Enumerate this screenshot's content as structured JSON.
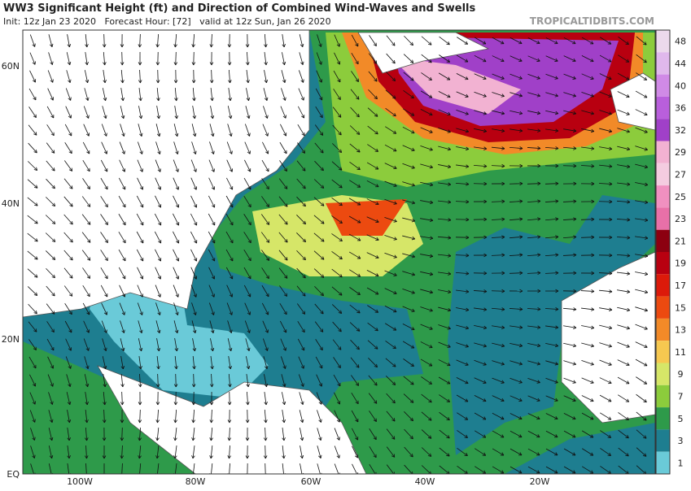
{
  "title": "WW3 Significant Height (ft) and Direction of Combined Wind-Waves and Swells",
  "subtitle": "Init: 12z Jan 23 2020   Forecast Hour: [72]   valid at 12z Sun, Jan 26 2020",
  "brand": "TROPICALTIDBITS.COM",
  "lat_labels": [
    "60N",
    "40N",
    "20N",
    "EQ"
  ],
  "lon_labels": [
    "100W",
    "80W",
    "60W",
    "40W",
    "20W"
  ],
  "colorbar": {
    "levels": [
      48,
      44,
      40,
      36,
      32,
      29,
      27,
      25,
      23,
      21,
      19,
      17,
      15,
      13,
      11,
      9,
      7,
      5,
      3,
      1
    ],
    "colors": [
      "#ecd9ec",
      "#e0b8ec",
      "#d08ae6",
      "#b95fdc",
      "#a040c8",
      "#f2b2d2",
      "#f4cce0",
      "#f090c0",
      "#e870a8",
      "#8c0010",
      "#b80010",
      "#dc1a0a",
      "#ec4a10",
      "#f28a28",
      "#f6c850",
      "#d6e668",
      "#8ccc3c",
      "#2e9a4a",
      "#1e7e90",
      "#6acad8"
    ]
  }
}
